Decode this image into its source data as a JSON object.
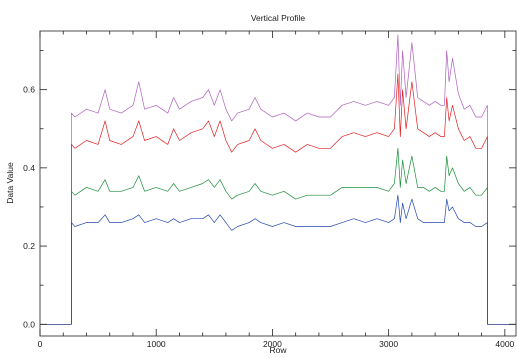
{
  "chart_data": {
    "type": "line",
    "title": "Vertical Profile",
    "xlabel": "Row",
    "ylabel": "Data Value",
    "xlim": [
      0,
      4096
    ],
    "ylim": [
      -0.03,
      0.75
    ],
    "xticks": [
      0,
      1000,
      2000,
      3000,
      4000
    ],
    "yticks": [
      0.0,
      0.2,
      0.4,
      0.6
    ],
    "xtick_labels": [
      "0",
      "1000",
      "2000",
      "3000",
      "4000"
    ],
    "ytick_labels": [
      "0.0",
      "0.2",
      "0.4",
      "0.6"
    ],
    "grid": false,
    "series": [
      {
        "color": "#b05fc0",
        "x": [
          0,
          270,
          270,
          300,
          400,
          500,
          560,
          600,
          700,
          800,
          850,
          900,
          1000,
          1100,
          1150,
          1200,
          1300,
          1400,
          1450,
          1500,
          1550,
          1600,
          1650,
          1700,
          1800,
          1850,
          1900,
          2000,
          2100,
          2200,
          2300,
          2400,
          2500,
          2600,
          2700,
          2800,
          2900,
          3000,
          3050,
          3080,
          3100,
          3120,
          3150,
          3200,
          3250,
          3300,
          3350,
          3400,
          3450,
          3480,
          3500,
          3520,
          3550,
          3600,
          3650,
          3700,
          3750,
          3800,
          3850,
          3850,
          4096
        ],
        "values": [
          0.0,
          0.0,
          0.54,
          0.53,
          0.55,
          0.54,
          0.6,
          0.55,
          0.54,
          0.56,
          0.62,
          0.55,
          0.56,
          0.54,
          0.58,
          0.55,
          0.57,
          0.58,
          0.6,
          0.56,
          0.6,
          0.55,
          0.52,
          0.54,
          0.55,
          0.58,
          0.55,
          0.53,
          0.54,
          0.52,
          0.54,
          0.53,
          0.53,
          0.56,
          0.57,
          0.56,
          0.57,
          0.56,
          0.58,
          0.74,
          0.56,
          0.7,
          0.58,
          0.72,
          0.58,
          0.57,
          0.56,
          0.57,
          0.56,
          0.56,
          0.7,
          0.62,
          0.68,
          0.59,
          0.55,
          0.56,
          0.53,
          0.53,
          0.56,
          0.0,
          0.0
        ]
      },
      {
        "color": "#e02020",
        "x": [
          0,
          270,
          270,
          300,
          400,
          500,
          560,
          600,
          700,
          800,
          850,
          900,
          1000,
          1100,
          1150,
          1200,
          1300,
          1400,
          1450,
          1500,
          1550,
          1600,
          1650,
          1700,
          1800,
          1850,
          1900,
          2000,
          2100,
          2200,
          2300,
          2400,
          2500,
          2600,
          2700,
          2800,
          2900,
          3000,
          3050,
          3080,
          3100,
          3120,
          3150,
          3200,
          3250,
          3300,
          3350,
          3400,
          3450,
          3480,
          3500,
          3520,
          3550,
          3600,
          3650,
          3700,
          3750,
          3800,
          3850,
          3850,
          4096
        ],
        "values": [
          0.0,
          0.0,
          0.46,
          0.45,
          0.47,
          0.46,
          0.52,
          0.47,
          0.46,
          0.48,
          0.52,
          0.47,
          0.48,
          0.46,
          0.5,
          0.47,
          0.49,
          0.5,
          0.52,
          0.48,
          0.52,
          0.47,
          0.44,
          0.46,
          0.47,
          0.5,
          0.47,
          0.45,
          0.46,
          0.44,
          0.46,
          0.45,
          0.45,
          0.48,
          0.49,
          0.48,
          0.49,
          0.48,
          0.5,
          0.64,
          0.48,
          0.6,
          0.5,
          0.62,
          0.5,
          0.49,
          0.48,
          0.49,
          0.48,
          0.48,
          0.58,
          0.52,
          0.56,
          0.5,
          0.47,
          0.48,
          0.45,
          0.45,
          0.48,
          0.0,
          0.0
        ]
      },
      {
        "color": "#1a8f3a",
        "x": [
          0,
          270,
          270,
          300,
          400,
          500,
          560,
          600,
          700,
          800,
          850,
          900,
          1000,
          1100,
          1150,
          1200,
          1300,
          1400,
          1450,
          1500,
          1550,
          1600,
          1650,
          1700,
          1800,
          1850,
          1900,
          2000,
          2100,
          2200,
          2300,
          2400,
          2500,
          2600,
          2700,
          2800,
          2900,
          3000,
          3050,
          3080,
          3100,
          3120,
          3150,
          3200,
          3250,
          3300,
          3350,
          3400,
          3450,
          3480,
          3500,
          3520,
          3550,
          3600,
          3650,
          3700,
          3750,
          3800,
          3850,
          3850,
          4096
        ],
        "values": [
          0.0,
          0.0,
          0.34,
          0.33,
          0.35,
          0.34,
          0.37,
          0.34,
          0.34,
          0.35,
          0.38,
          0.34,
          0.35,
          0.34,
          0.36,
          0.34,
          0.35,
          0.36,
          0.37,
          0.35,
          0.37,
          0.34,
          0.32,
          0.33,
          0.34,
          0.36,
          0.34,
          0.33,
          0.34,
          0.32,
          0.33,
          0.33,
          0.33,
          0.35,
          0.35,
          0.35,
          0.35,
          0.34,
          0.36,
          0.45,
          0.35,
          0.42,
          0.36,
          0.43,
          0.35,
          0.35,
          0.34,
          0.35,
          0.34,
          0.34,
          0.43,
          0.38,
          0.4,
          0.36,
          0.34,
          0.35,
          0.33,
          0.33,
          0.35,
          0.0,
          0.0
        ]
      },
      {
        "color": "#2448b0",
        "x": [
          0,
          270,
          270,
          300,
          400,
          500,
          560,
          600,
          700,
          800,
          850,
          900,
          1000,
          1100,
          1150,
          1200,
          1300,
          1400,
          1450,
          1500,
          1550,
          1600,
          1650,
          1700,
          1800,
          1850,
          1900,
          2000,
          2100,
          2200,
          2300,
          2400,
          2500,
          2600,
          2700,
          2800,
          2900,
          3000,
          3050,
          3080,
          3100,
          3120,
          3150,
          3200,
          3250,
          3300,
          3350,
          3400,
          3450,
          3480,
          3500,
          3520,
          3550,
          3600,
          3650,
          3700,
          3750,
          3800,
          3850,
          3850,
          4096
        ],
        "values": [
          0.0,
          0.0,
          0.26,
          0.25,
          0.26,
          0.26,
          0.28,
          0.26,
          0.26,
          0.27,
          0.28,
          0.26,
          0.27,
          0.26,
          0.27,
          0.26,
          0.27,
          0.27,
          0.28,
          0.26,
          0.28,
          0.26,
          0.24,
          0.25,
          0.26,
          0.27,
          0.26,
          0.25,
          0.26,
          0.25,
          0.25,
          0.25,
          0.25,
          0.26,
          0.27,
          0.26,
          0.27,
          0.26,
          0.27,
          0.33,
          0.26,
          0.31,
          0.27,
          0.32,
          0.27,
          0.26,
          0.26,
          0.26,
          0.26,
          0.26,
          0.32,
          0.29,
          0.3,
          0.27,
          0.26,
          0.26,
          0.25,
          0.25,
          0.26,
          0.0,
          0.0
        ]
      }
    ]
  }
}
